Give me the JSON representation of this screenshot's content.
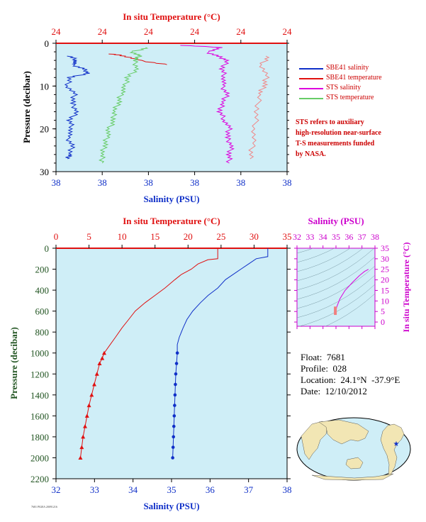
{
  "top_chart": {
    "top_axis_title": "In situ Temperature (°C)",
    "top_ticks": [
      "24",
      "24",
      "24",
      "24",
      "24",
      "24"
    ],
    "bottom_axis_title": "Salinity (PSU)",
    "bottom_ticks": [
      "38",
      "38",
      "38",
      "38",
      "38",
      "38"
    ],
    "y_axis_title": "Pressure (decibar)",
    "y_ticks": [
      "0",
      "10",
      "20",
      "30"
    ],
    "legend": [
      {
        "label": "SBE41 salinity",
        "color": "#1030c8"
      },
      {
        "label": "SBE41 temperature",
        "color": "#e01010"
      },
      {
        "label": "STS salinity",
        "color": "#dd00dd"
      },
      {
        "label": "STS temperature",
        "color": "#66cc66"
      }
    ],
    "note_lines": [
      "STS refers to auxiliary",
      "high-resolution near-surface",
      "T-S measurements funded",
      "by NASA."
    ]
  },
  "main_chart": {
    "top_axis_title": "In situ Temperature (°C)",
    "top_ticks": [
      "0",
      "5",
      "10",
      "15",
      "20",
      "25",
      "30",
      "35"
    ],
    "bottom_axis_title": "Salinity (PSU)",
    "bottom_ticks": [
      "32",
      "33",
      "34",
      "35",
      "36",
      "37",
      "38"
    ],
    "y_axis_title": "Pressure (decibar)",
    "y_ticks": [
      "0",
      "200",
      "400",
      "600",
      "800",
      "1000",
      "1200",
      "1400",
      "1600",
      "1800",
      "2000",
      "2200"
    ]
  },
  "ts_chart": {
    "top_axis_title": "Salinity (PSU)",
    "top_ticks": [
      "32",
      "33",
      "34",
      "35",
      "36",
      "37",
      "38"
    ],
    "right_axis_title": "In situ Temperature (°C)",
    "right_ticks": [
      "0",
      "5",
      "10",
      "15",
      "20",
      "25",
      "30",
      "35"
    ]
  },
  "float_info": {
    "float": "Float:  7681",
    "profile": "Profile:  028",
    "location": "Location:  24.1°N  -37.9°E",
    "date": "Date:  12/10/2012"
  },
  "footer_text": "7681 P028A 20091216",
  "colors": {
    "plot_bg": "#cfeef7",
    "temperature": "#e01010",
    "salinity": "#1030c8",
    "sts_salinity": "#dd00dd",
    "sts_temperature": "#66cc66",
    "ts_line": "#dd00dd",
    "axis_red": "#e01010",
    "axis_blue": "#1030c8",
    "axis_green": "#225522",
    "axis_magenta": "#cc00cc"
  },
  "chart_data": [
    {
      "type": "line",
      "title": "",
      "xlabel_top": "In situ Temperature (°C)",
      "xlabel_bottom": "Salinity (PSU)",
      "ylabel": "Pressure (decibar)",
      "ylim": [
        30,
        0
      ],
      "series": [
        {
          "name": "SBE41 salinity",
          "color": "#1030c8",
          "points": [
            [
              0.06,
              3
            ],
            [
              0.09,
              4
            ],
            [
              0.07,
              5
            ],
            [
              0.12,
              6
            ],
            [
              0.14,
              7
            ],
            [
              0.06,
              8
            ],
            [
              0.05,
              10
            ],
            [
              0.08,
              12
            ],
            [
              0.07,
              14
            ],
            [
              0.09,
              16
            ],
            [
              0.06,
              18
            ],
            [
              0.07,
              20
            ],
            [
              0.05,
              22
            ],
            [
              0.07,
              24
            ],
            [
              0.06,
              26
            ],
            [
              0.05,
              27
            ]
          ]
        },
        {
          "name": "SBE41 temperature",
          "color": "#e01010",
          "points": [
            [
              0.24,
              2.5
            ],
            [
              0.3,
              3
            ],
            [
              0.36,
              4
            ],
            [
              0.48,
              5
            ]
          ]
        },
        {
          "name": "STS salinity",
          "color": "#dd00dd",
          "points": [
            [
              0.55,
              0.5
            ],
            [
              0.72,
              1
            ],
            [
              0.65,
              2
            ],
            [
              0.7,
              3
            ],
            [
              0.74,
              4
            ],
            [
              0.72,
              6
            ],
            [
              0.73,
              8
            ],
            [
              0.72,
              10
            ],
            [
              0.74,
              12
            ],
            [
              0.72,
              14
            ],
            [
              0.71,
              16
            ],
            [
              0.73,
              18
            ],
            [
              0.75,
              20
            ],
            [
              0.74,
              22
            ],
            [
              0.76,
              24
            ],
            [
              0.75,
              26
            ],
            [
              0.75,
              28
            ]
          ]
        },
        {
          "name": "STS temperature",
          "color": "#66cc66",
          "points": [
            [
              0.4,
              1
            ],
            [
              0.33,
              2
            ],
            [
              0.36,
              3
            ],
            [
              0.34,
              4
            ],
            [
              0.35,
              6
            ],
            [
              0.31,
              8
            ],
            [
              0.3,
              10
            ],
            [
              0.28,
              12
            ],
            [
              0.27,
              14
            ],
            [
              0.25,
              16
            ],
            [
              0.25,
              18
            ],
            [
              0.23,
              20
            ],
            [
              0.22,
              22
            ],
            [
              0.21,
              24
            ],
            [
              0.2,
              26
            ],
            [
              0.2,
              28
            ]
          ]
        },
        {
          "name": "STS temperature (salmon)",
          "color": "#f08888",
          "points": [
            [
              0.92,
              3
            ],
            [
              0.89,
              5
            ],
            [
              0.91,
              8
            ],
            [
              0.9,
              10
            ],
            [
              0.88,
              12
            ],
            [
              0.87,
              16
            ],
            [
              0.86,
              20
            ],
            [
              0.85,
              24
            ],
            [
              0.84,
              27
            ]
          ]
        }
      ]
    },
    {
      "type": "line",
      "title": "",
      "xlabel_top": "In situ Temperature (°C)",
      "xlabel_bottom": "Salinity (PSU)",
      "ylabel": "Pressure (decibar)",
      "temperature_xlim": [
        0,
        35
      ],
      "salinity_xlim": [
        32,
        38
      ],
      "ylim": [
        2200,
        0
      ],
      "series": [
        {
          "name": "Temperature",
          "color": "#e01010",
          "axis": "temperature",
          "points": [
            [
              24.5,
              0
            ],
            [
              24.5,
              100
            ],
            [
              23.0,
              110
            ],
            [
              21.5,
              150
            ],
            [
              20.5,
              200
            ],
            [
              19.0,
              250
            ],
            [
              18.0,
              300
            ],
            [
              16.5,
              380
            ],
            [
              15.0,
              450
            ],
            [
              13.5,
              520
            ],
            [
              12.0,
              600
            ],
            [
              11.0,
              680
            ],
            [
              10.0,
              760
            ],
            [
              9.0,
              850
            ],
            [
              8.2,
              920
            ],
            [
              7.3,
              1000
            ],
            [
              7.0,
              1050
            ],
            [
              6.6,
              1100
            ],
            [
              6.2,
              1200
            ],
            [
              5.8,
              1300
            ],
            [
              5.4,
              1400
            ],
            [
              5.0,
              1500
            ],
            [
              4.7,
              1600
            ],
            [
              4.4,
              1700
            ],
            [
              4.1,
              1800
            ],
            [
              3.9,
              1900
            ],
            [
              3.7,
              2000
            ]
          ],
          "marker_from": 1000
        },
        {
          "name": "Salinity",
          "color": "#1030c8",
          "axis": "salinity",
          "points": [
            [
              37.5,
              0
            ],
            [
              37.5,
              80
            ],
            [
              37.2,
              100
            ],
            [
              37.0,
              150
            ],
            [
              36.8,
              200
            ],
            [
              36.6,
              250
            ],
            [
              36.4,
              300
            ],
            [
              36.2,
              380
            ],
            [
              35.95,
              450
            ],
            [
              35.75,
              520
            ],
            [
              35.55,
              600
            ],
            [
              35.4,
              680
            ],
            [
              35.3,
              760
            ],
            [
              35.2,
              850
            ],
            [
              35.15,
              920
            ],
            [
              35.15,
              1000
            ],
            [
              35.13,
              1100
            ],
            [
              35.11,
              1200
            ],
            [
              35.1,
              1300
            ],
            [
              35.09,
              1400
            ],
            [
              35.08,
              1500
            ],
            [
              35.07,
              1600
            ],
            [
              35.06,
              1700
            ],
            [
              35.05,
              1800
            ],
            [
              35.04,
              1900
            ],
            [
              35.03,
              2000
            ]
          ],
          "marker_from": 1000
        }
      ]
    },
    {
      "type": "line",
      "title": "",
      "xlabel": "Salinity (PSU)",
      "ylabel": "In situ Temperature (°C)",
      "xlim": [
        32,
        38
      ],
      "ylim": [
        -2,
        35
      ],
      "series": [
        {
          "name": "T-S",
          "color": "#dd00dd",
          "points": [
            [
              35.0,
              3.7
            ],
            [
              35.0,
              5
            ],
            [
              35.05,
              7
            ],
            [
              35.3,
              11
            ],
            [
              35.7,
              15
            ],
            [
              36.3,
              19
            ],
            [
              36.8,
              22
            ],
            [
              37.2,
              24
            ],
            [
              37.5,
              25
            ]
          ]
        }
      ]
    }
  ]
}
